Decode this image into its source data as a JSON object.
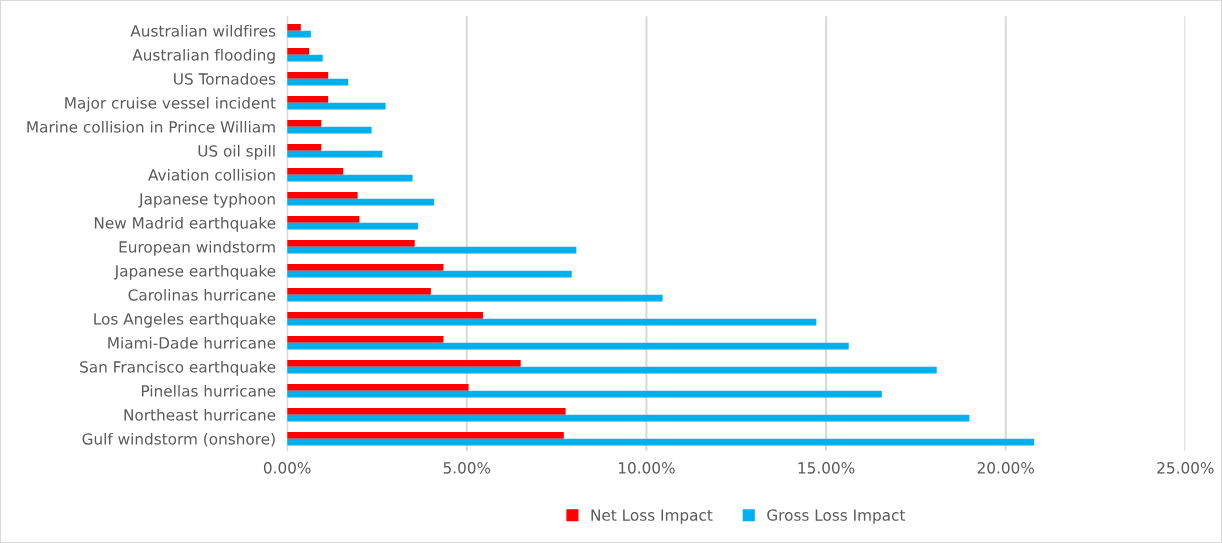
{
  "chart_data": {
    "type": "bar",
    "orientation": "horizontal",
    "categories": [
      "Australian wildfires",
      "Australian flooding",
      "US Tornadoes",
      "Major cruise vessel incident",
      "Marine collision in Prince William",
      "US oil spill",
      "Aviation collision",
      "Japanese typhoon",
      "New Madrid earthquake",
      "European windstorm",
      "Japanese earthquake",
      "Carolinas hurricane",
      "Los Angeles earthquake",
      "Miami-Dade hurricane",
      "San Francisco earthquake",
      "Pinellas hurricane",
      "Northeast hurricane",
      "Gulf windstorm (onshore)"
    ],
    "series": [
      {
        "name": "Net Loss Impact",
        "color": "#ff0000",
        "values": [
          0.38,
          0.61,
          1.14,
          1.14,
          0.95,
          0.95,
          1.56,
          1.96,
          2.01,
          3.55,
          4.35,
          4.0,
          5.45,
          4.35,
          6.5,
          5.05,
          7.75,
          7.7
        ]
      },
      {
        "name": "Gross Loss Impact",
        "color": "#00b0f0",
        "values": [
          0.66,
          0.99,
          1.7,
          2.74,
          2.35,
          2.65,
          3.49,
          4.09,
          3.64,
          8.05,
          7.92,
          10.45,
          14.73,
          15.63,
          18.08,
          16.55,
          18.99,
          20.79
        ]
      }
    ],
    "xlim": [
      0,
      25
    ],
    "xticks": [
      {
        "value": 0,
        "label": "0.00%"
      },
      {
        "value": 5,
        "label": "5.00%"
      },
      {
        "value": 10,
        "label": "10.00%"
      },
      {
        "value": 15,
        "label": "15.00%"
      },
      {
        "value": 20,
        "label": "20.00%"
      },
      {
        "value": 25,
        "label": "25.00%"
      }
    ],
    "grid": "x",
    "legend": "bottom"
  }
}
